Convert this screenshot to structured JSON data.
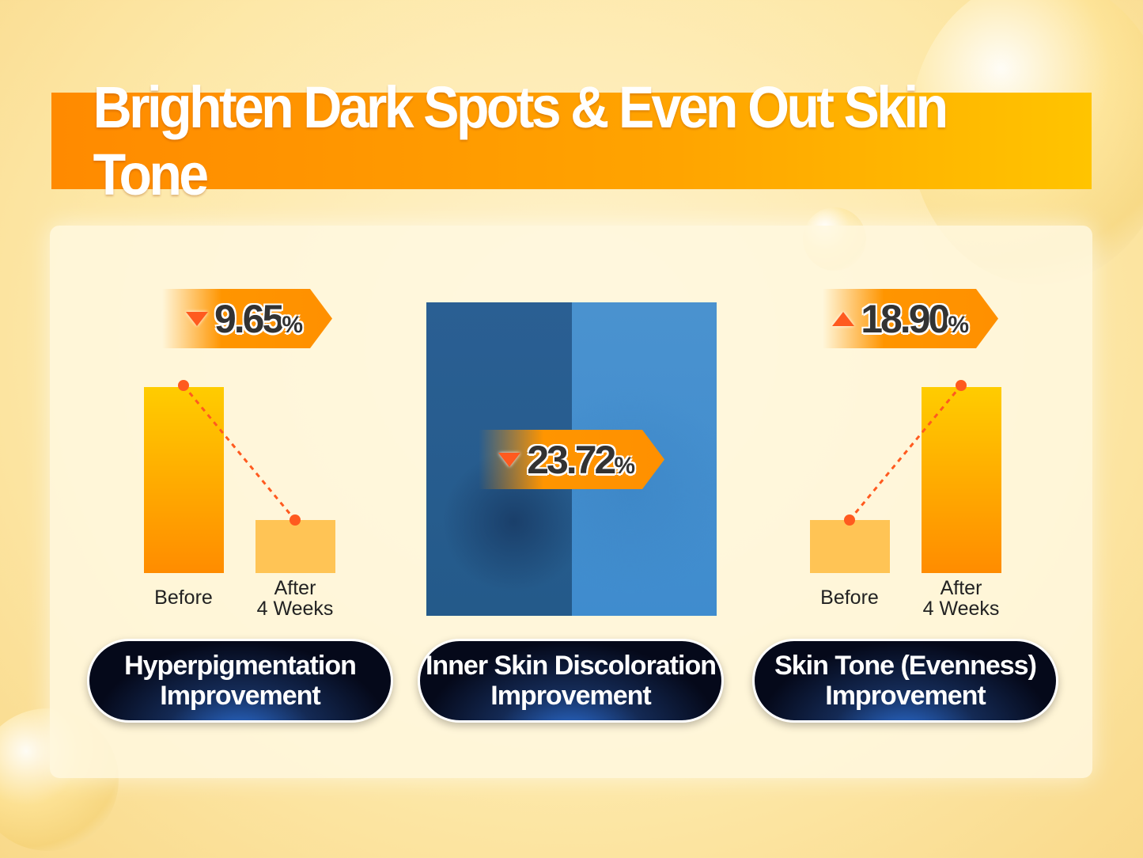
{
  "title": "Brighten Dark Spots & Even Out Skin Tone",
  "panels": [
    {
      "badge": {
        "direction": "down",
        "value": "9.65",
        "unit": "%"
      },
      "bars": [
        {
          "label": "Before"
        },
        {
          "label_line1": "After",
          "label_line2": "4 Weeks"
        }
      ],
      "pill": {
        "line1": "Hyperpigmentation",
        "line2": "Improvement"
      }
    },
    {
      "badge": {
        "direction": "down",
        "value": "23.72",
        "unit": "%"
      },
      "pill": {
        "line1": "Inner Skin Discoloration",
        "line2": "Improvement"
      }
    },
    {
      "badge": {
        "direction": "up",
        "value": "18.90",
        "unit": "%"
      },
      "bars": [
        {
          "label": "Before"
        },
        {
          "label_line1": "After",
          "label_line2": "4 Weeks"
        }
      ],
      "pill": {
        "line1": "Skin Tone (Evenness)",
        "line2": "Improvement"
      }
    }
  ],
  "colors": {
    "accent": "#ff9000",
    "bar_gradient_top": "#ffcc00",
    "bar_light": "#ffc455",
    "marker": "#ff5a1f",
    "pill_dark": "#05091a"
  }
}
